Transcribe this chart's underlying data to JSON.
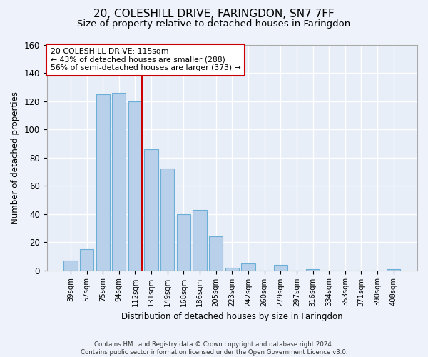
{
  "title1": "20, COLESHILL DRIVE, FARINGDON, SN7 7FF",
  "title2": "Size of property relative to detached houses in Faringdon",
  "xlabel": "Distribution of detached houses by size in Faringdon",
  "ylabel": "Number of detached properties",
  "categories": [
    "39sqm",
    "57sqm",
    "75sqm",
    "94sqm",
    "112sqm",
    "131sqm",
    "149sqm",
    "168sqm",
    "186sqm",
    "205sqm",
    "223sqm",
    "242sqm",
    "260sqm",
    "279sqm",
    "297sqm",
    "316sqm",
    "334sqm",
    "353sqm",
    "371sqm",
    "390sqm",
    "408sqm"
  ],
  "values": [
    7,
    15,
    125,
    126,
    120,
    86,
    72,
    40,
    43,
    24,
    2,
    5,
    0,
    4,
    0,
    1,
    0,
    0,
    0,
    0,
    1
  ],
  "bar_color": "#b8d0ea",
  "bar_edge_color": "#6baed6",
  "vline_x": 4.42,
  "vline_color": "#cc0000",
  "annotation_text": "20 COLESHILL DRIVE: 115sqm\n← 43% of detached houses are smaller (288)\n56% of semi-detached houses are larger (373) →",
  "annotation_box_color": "#ffffff",
  "annotation_box_edge": "#cc0000",
  "ylim": [
    0,
    160
  ],
  "yticks": [
    0,
    20,
    40,
    60,
    80,
    100,
    120,
    140,
    160
  ],
  "footer": "Contains HM Land Registry data © Crown copyright and database right 2024.\nContains public sector information licensed under the Open Government Licence v3.0.",
  "bg_color": "#eef2fa",
  "plot_bg_color": "#e8eef8",
  "grid_color": "#ffffff",
  "title1_fontsize": 11,
  "title2_fontsize": 9.5
}
